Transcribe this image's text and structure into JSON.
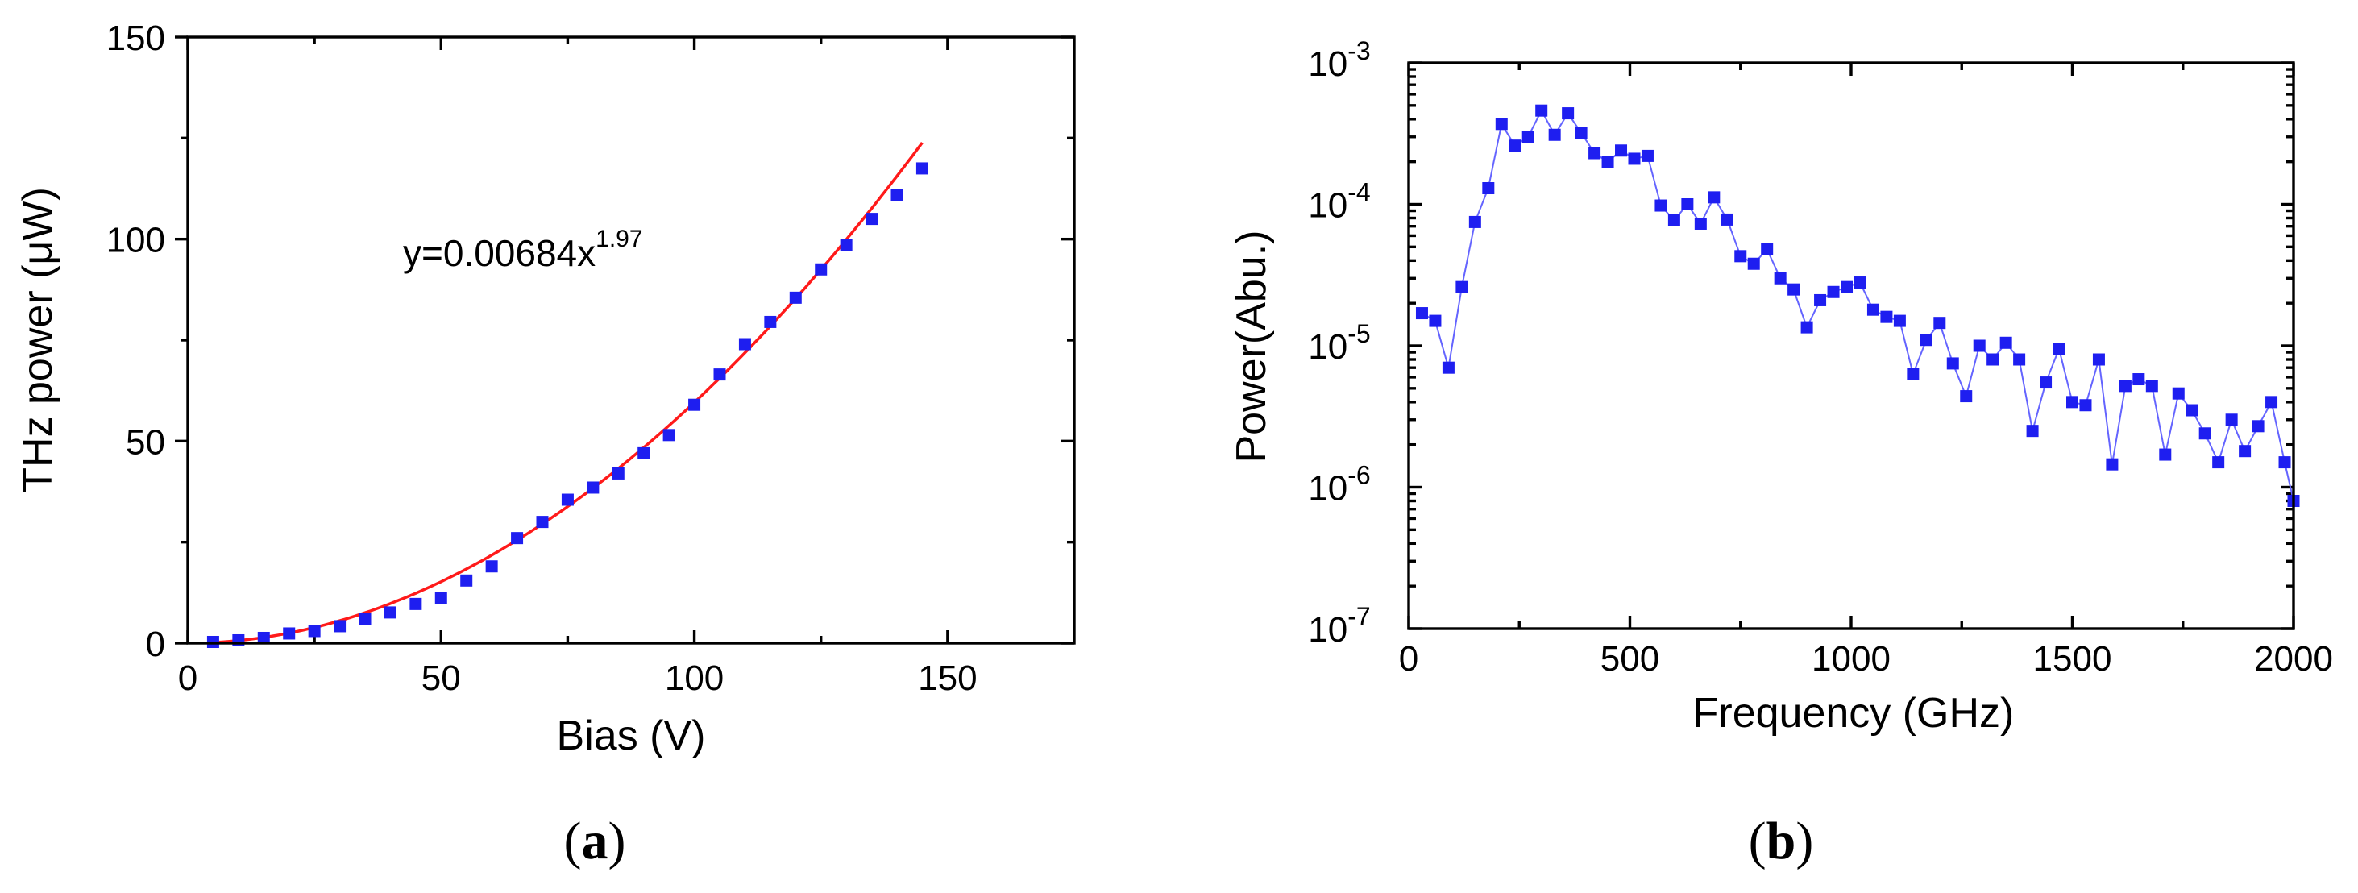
{
  "panels": [
    {
      "label_open": "(",
      "label_letter": "a",
      "label_close": ")"
    },
    {
      "label_open": "(",
      "label_letter": "b",
      "label_close": ")"
    }
  ],
  "chart_data": [
    {
      "type": "scatter",
      "xlabel": "Bias (V)",
      "ylabel": "THz power (μW)",
      "xlim": [
        0,
        175
      ],
      "ylim": [
        0,
        150
      ],
      "xticks": [
        0,
        50,
        100,
        150
      ],
      "yticks": [
        0,
        50,
        100,
        150
      ],
      "grid": false,
      "marker_color": "#1e1ef0",
      "fit_color": "#ff1a1a",
      "annotation": {
        "base": "y=0.00684x",
        "exponent": "1.97"
      },
      "fit": {
        "coefficient": 0.00684,
        "exponent": 1.97,
        "x_range": [
          5,
          145
        ]
      },
      "series": [
        {
          "x": [
            5,
            10,
            15,
            20,
            25,
            30,
            35,
            40,
            45,
            50,
            55,
            60,
            65,
            70,
            75,
            80,
            85,
            90,
            95,
            100,
            105,
            110,
            115,
            120,
            125,
            130,
            135,
            140,
            145
          ],
          "values": [
            0.3,
            0.7,
            1.3,
            2.4,
            3.0,
            4.2,
            6.0,
            7.6,
            9.7,
            11.2,
            15.5,
            19.0,
            26.0,
            30.0,
            35.5,
            38.5,
            42.0,
            47.0,
            51.5,
            59.0,
            66.5,
            74.0,
            79.5,
            85.5,
            92.5,
            98.5,
            105.0,
            111.0,
            117.5
          ]
        }
      ]
    },
    {
      "type": "line",
      "xlabel": "Frequency (GHz)",
      "ylabel": "Power(Abu.)",
      "xlim": [
        0,
        2000
      ],
      "ylim": [
        1e-07,
        0.001
      ],
      "yscale": "log",
      "xticks": [
        0,
        500,
        1000,
        1500,
        2000
      ],
      "ytick_labels": [
        {
          "base": "10",
          "exp": "-3",
          "value": 0.001
        },
        {
          "base": "10",
          "exp": "-4",
          "value": 0.0001
        },
        {
          "base": "10",
          "exp": "-5",
          "value": 1e-05
        },
        {
          "base": "10",
          "exp": "-6",
          "value": 1e-06
        },
        {
          "base": "10",
          "exp": "-7",
          "value": 1e-07
        }
      ],
      "grid": false,
      "marker_color": "#1e1ef0",
      "line_color": "#6464ff",
      "series": [
        {
          "x": [
            30,
            60,
            90,
            120,
            150,
            180,
            210,
            240,
            270,
            300,
            330,
            360,
            390,
            420,
            450,
            480,
            510,
            540,
            570,
            600,
            630,
            660,
            690,
            720,
            750,
            780,
            810,
            840,
            870,
            900,
            930,
            960,
            990,
            1020,
            1050,
            1080,
            1110,
            1140,
            1170,
            1200,
            1230,
            1260,
            1290,
            1320,
            1350,
            1380,
            1410,
            1440,
            1470,
            1500,
            1530,
            1560,
            1590,
            1620,
            1650,
            1680,
            1710,
            1740,
            1770,
            1800,
            1830,
            1860,
            1890,
            1920,
            1950,
            1980,
            2000
          ],
          "values": [
            1.7e-05,
            1.5e-05,
            7e-06,
            2.6e-05,
            7.5e-05,
            0.00013,
            0.00037,
            0.00026,
            0.0003,
            0.00046,
            0.00031,
            0.00044,
            0.00032,
            0.00023,
            0.0002,
            0.00024,
            0.00021,
            0.00022,
            9.8e-05,
            7.7e-05,
            0.0001,
            7.3e-05,
            0.000112,
            7.8e-05,
            4.3e-05,
            3.8e-05,
            4.8e-05,
            3e-05,
            2.5e-05,
            1.35e-05,
            2.1e-05,
            2.4e-05,
            2.6e-05,
            2.8e-05,
            1.8e-05,
            1.6e-05,
            1.5e-05,
            6.3e-06,
            1.1e-05,
            1.45e-05,
            7.5e-06,
            4.4e-06,
            1e-05,
            8e-06,
            1.05e-05,
            8e-06,
            2.5e-06,
            5.5e-06,
            9.5e-06,
            4e-06,
            3.8e-06,
            8e-06,
            1.45e-06,
            5.2e-06,
            5.8e-06,
            5.2e-06,
            1.7e-06,
            4.6e-06,
            3.5e-06,
            2.4e-06,
            1.5e-06,
            3e-06,
            1.8e-06,
            2.7e-06,
            4e-06,
            1.5e-06,
            8e-07
          ]
        }
      ]
    }
  ]
}
